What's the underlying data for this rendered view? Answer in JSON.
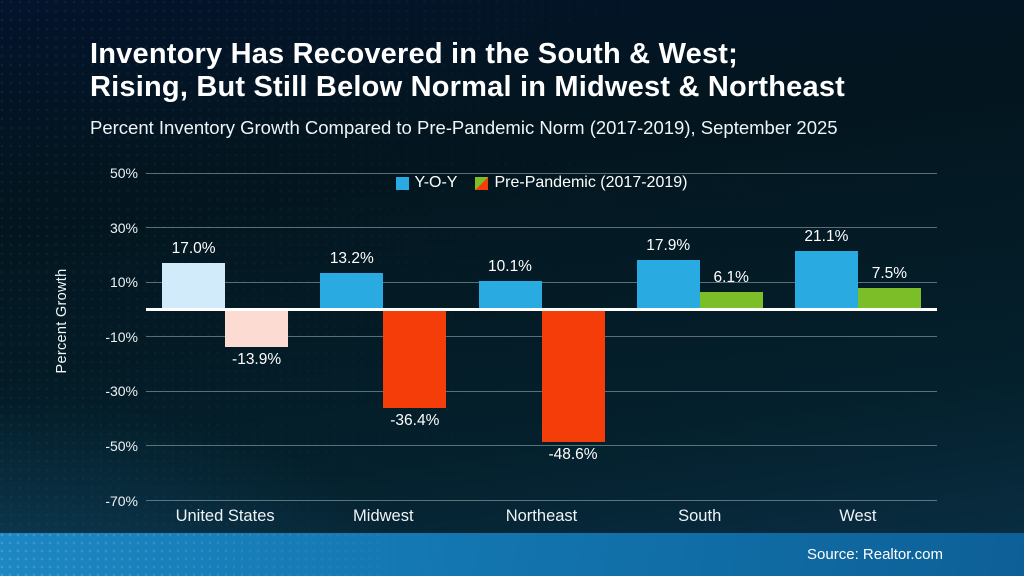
{
  "slide": {
    "title_line1": "Inventory Has Recovered in the South & West;",
    "title_line2": "Rising, But Still Below Normal in Midwest & Northeast",
    "subtitle": "Percent Inventory Growth Compared to Pre-Pandemic Norm (2017-2019), September 2025",
    "source": "Source: Realtor.com"
  },
  "theme": {
    "background_dark": "#03151e",
    "background_glow": "#1b5e86",
    "footer_blue_left": "#1e86c1",
    "footer_blue_right": "#0d6097",
    "gridline": "#a0b4c0",
    "zero_line": "#ffffff",
    "text": "#ffffff",
    "yoy_blue": "#29abe2",
    "yoy_us_light_blue": "#d2ebfa",
    "prepandemic_red": "#f43d08",
    "prepandemic_us_light_pink": "#fcdcd2",
    "prepandemic_green": "#7cbe28"
  },
  "chart_data": {
    "type": "bar",
    "title": "",
    "xlabel": "",
    "ylabel": "Percent Growth",
    "categories": [
      "United States",
      "Midwest",
      "Northeast",
      "South",
      "West"
    ],
    "series": [
      {
        "name": "Y-O-Y",
        "values": [
          17.0,
          13.2,
          10.1,
          17.9,
          21.1
        ],
        "labels": [
          "17.0%",
          "13.2%",
          "10.1%",
          "17.9%",
          "21.1%"
        ],
        "colors": [
          "#d2ebfa",
          "#29abe2",
          "#29abe2",
          "#29abe2",
          "#29abe2"
        ]
      },
      {
        "name": "Pre-Pandemic (2017-2019)",
        "values": [
          -13.9,
          -36.4,
          -48.6,
          6.1,
          7.5
        ],
        "labels": [
          "-13.9%",
          "-36.4%",
          "-48.6%",
          "6.1%",
          "7.5%"
        ],
        "colors": [
          "#fcdcd2",
          "#f43d08",
          "#f43d08",
          "#7cbe28",
          "#7cbe28"
        ]
      }
    ],
    "ylim": [
      -70,
      50
    ],
    "yticks": [
      50,
      30,
      10,
      -10,
      -30,
      -50,
      -70
    ],
    "ytick_labels": [
      "50%",
      "30%",
      "10%",
      "-10%",
      "-30%",
      "-50%",
      "-70%"
    ],
    "grid": true,
    "legend_position": "top-center",
    "legend": [
      {
        "label": "Y-O-Y",
        "marker": "solid",
        "color": "#29abe2"
      },
      {
        "label": "Pre-Pandemic (2017-2019)",
        "marker": "split-diagonal",
        "color_top_left": "#7cbe28",
        "color_bottom_right": "#f43d08"
      }
    ]
  }
}
